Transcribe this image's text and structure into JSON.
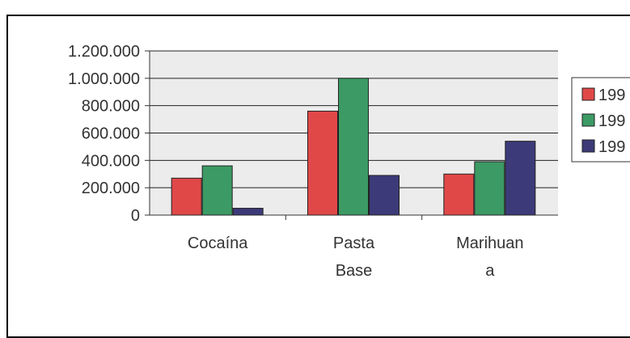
{
  "colors": {
    "series": [
      "#e04848",
      "#3c9a64",
      "#3c3a78"
    ],
    "plot_bg": "#ececec",
    "grid": "#222222"
  },
  "chart_data": {
    "type": "bar",
    "categories": [
      [
        "Cocaína"
      ],
      [
        "Pasta",
        "Base"
      ],
      [
        "Marihuan",
        "a"
      ]
    ],
    "series": [
      {
        "name": "199",
        "values": [
          270000,
          760000,
          300000
        ]
      },
      {
        "name": "199",
        "values": [
          360000,
          1000000,
          390000
        ]
      },
      {
        "name": "199",
        "values": [
          50000,
          290000,
          540000
        ]
      }
    ],
    "ylim": [
      0,
      1200000
    ],
    "yticks": [
      "0",
      "200.000",
      "400.000",
      "600.000",
      "800.000",
      "1.000.000",
      "1.200.000"
    ],
    "grid": true,
    "legend": "right"
  }
}
